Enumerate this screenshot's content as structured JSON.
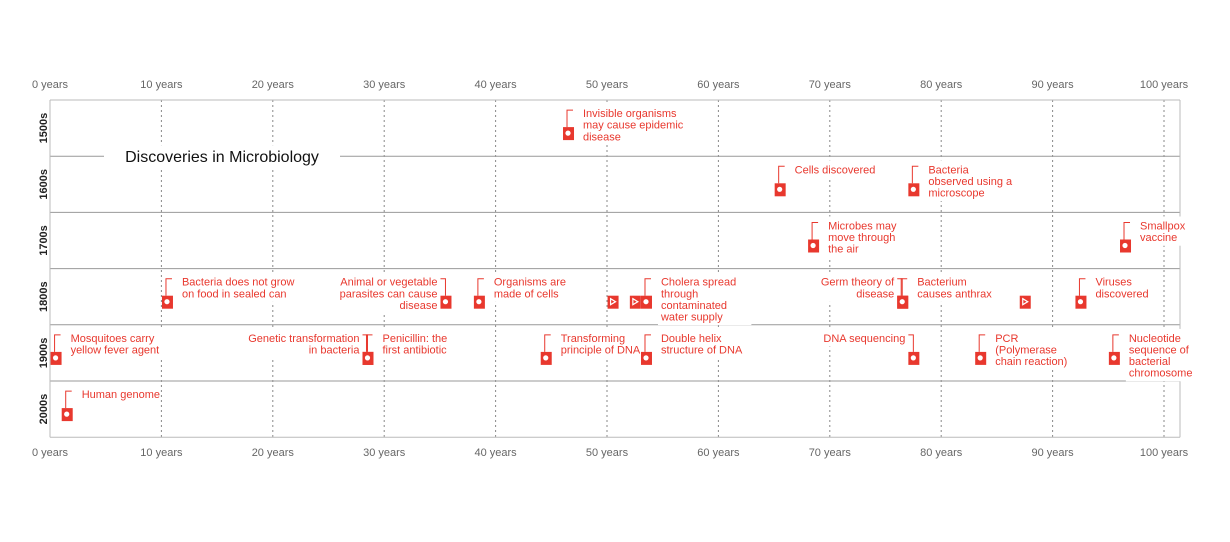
{
  "chart_data": {
    "type": "timeline",
    "title": "Discoveries in Microbiology",
    "x_axis": {
      "ticks": [
        "0 years",
        "10 years",
        "20 years",
        "30 years",
        "40 years",
        "50 years",
        "60 years",
        "70 years",
        "80 years",
        "90 years",
        "100 years"
      ],
      "tick_values": [
        0,
        10,
        20,
        30,
        40,
        50,
        60,
        70,
        80,
        90,
        100
      ],
      "range": [
        0,
        100
      ],
      "position": "top-and-bottom"
    },
    "rows": [
      "1500s",
      "1600s",
      "1700s",
      "1800s",
      "1900s",
      "2000s"
    ],
    "accent_color": "#e8382e",
    "events": [
      {
        "row": 0,
        "year": 46.5,
        "label": [
          "Invisible organisms",
          "may cause epidemic",
          "disease"
        ],
        "side": "right"
      },
      {
        "row": 1,
        "year": 65.5,
        "label": [
          "Cells discovered"
        ],
        "side": "right"
      },
      {
        "row": 1,
        "year": 77.5,
        "label": [
          "Bacteria",
          "observed using a",
          "microscope"
        ],
        "side": "right"
      },
      {
        "row": 2,
        "year": 68.5,
        "label": [
          "Microbes may",
          "move through",
          "the air"
        ],
        "side": "right"
      },
      {
        "row": 2,
        "year": 96.5,
        "label": [
          "Smallpox",
          "vaccine"
        ],
        "side": "right"
      },
      {
        "row": 3,
        "year": 10.5,
        "label": [
          "Bacteria does not grow",
          "on food in sealed can"
        ],
        "side": "right"
      },
      {
        "row": 3,
        "year": 35.5,
        "label": [
          "Animal or vegetable",
          "parasites can cause",
          "disease"
        ],
        "side": "left"
      },
      {
        "row": 3,
        "year": 38.5,
        "label": [
          "Organisms are",
          "made of cells"
        ],
        "side": "right"
      },
      {
        "row": 3,
        "year": 50.5,
        "label": [],
        "side": "none"
      },
      {
        "row": 3,
        "year": 52.5,
        "label": [],
        "side": "none"
      },
      {
        "row": 3,
        "year": 53.5,
        "label": [
          "Cholera spread",
          "through",
          "contaminated",
          "water supply"
        ],
        "side": "right"
      },
      {
        "row": 3,
        "year": 76.5,
        "label": [
          "Germ theory of",
          "disease"
        ],
        "side": "left"
      },
      {
        "row": 3,
        "year": 76.5,
        "label": [
          "Bacterium",
          "causes anthrax"
        ],
        "side": "right"
      },
      {
        "row": 3,
        "year": 87.5,
        "label": [],
        "side": "none"
      },
      {
        "row": 3,
        "year": 92.5,
        "label": [
          "Viruses",
          "discovered"
        ],
        "side": "right"
      },
      {
        "row": 4,
        "year": 0.5,
        "label": [
          "Mosquitoes carry",
          "yellow fever agent"
        ],
        "side": "right"
      },
      {
        "row": 4,
        "year": 28.5,
        "label": [
          "Genetic transformation",
          "in bacteria"
        ],
        "side": "left"
      },
      {
        "row": 4,
        "year": 28.5,
        "label": [
          "Penicillin: the",
          "first antibiotic"
        ],
        "side": "right"
      },
      {
        "row": 4,
        "year": 44.5,
        "label": [
          "Transforming",
          "principle of DNA"
        ],
        "side": "right"
      },
      {
        "row": 4,
        "year": 53.5,
        "label": [
          "Double helix",
          "structure of DNA"
        ],
        "side": "right"
      },
      {
        "row": 4,
        "year": 77.5,
        "label": [
          "DNA sequencing"
        ],
        "side": "left"
      },
      {
        "row": 4,
        "year": 83.5,
        "label": [
          "PCR",
          "(Polymerase",
          "chain reaction)"
        ],
        "side": "right"
      },
      {
        "row": 4,
        "year": 95.5,
        "label": [
          "Nucleotide",
          "sequence of",
          "bacterial",
          "chromosome"
        ],
        "side": "right"
      },
      {
        "row": 5,
        "year": 1.5,
        "label": [
          "Human genome"
        ],
        "side": "right"
      }
    ]
  }
}
